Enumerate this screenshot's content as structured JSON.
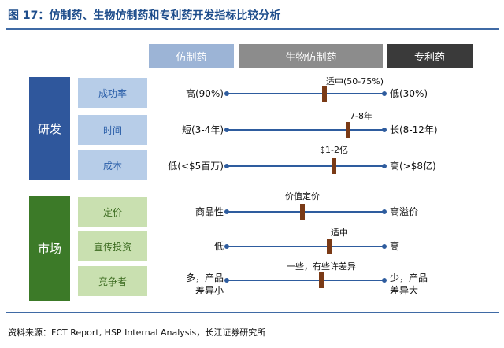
{
  "title": "图 17：仿制药、生物仿制药和专利药开发指标比较分析",
  "columns": {
    "generic": "仿制药",
    "biosimilar": "生物仿制药",
    "patent": "专利药"
  },
  "groups": {
    "rd": "研发",
    "market": "市场"
  },
  "rows": [
    {
      "factor": "成功率",
      "left": "高(90%)",
      "right": "低(30%)",
      "marker_label": "适中(50-75%)",
      "position": 0.62
    },
    {
      "factor": "时间",
      "left": "短(3-4年)",
      "right": "长(8-12年)",
      "marker_label": "7-8年",
      "position": 0.77
    },
    {
      "factor": "成本",
      "left": "低(<$5百万)",
      "right": "高(>$8亿)",
      "marker_label": "$1-2亿",
      "position": 0.68
    },
    {
      "factor": "定价",
      "left": "商品性",
      "right": "高溢价",
      "marker_label": "价值定价",
      "position": 0.48
    },
    {
      "factor": "宣传投资",
      "left": "低",
      "right": "高",
      "marker_label": "适中",
      "position": 0.65
    },
    {
      "factor": "竞争者",
      "left": "多，产品\n差异小",
      "right": "少，产品\n差异大",
      "marker_label": "一些，有些许差异",
      "position": 0.6
    }
  ],
  "source": "资料来源：FCT Report, HSP Internal Analysis，长江证券研究所"
}
